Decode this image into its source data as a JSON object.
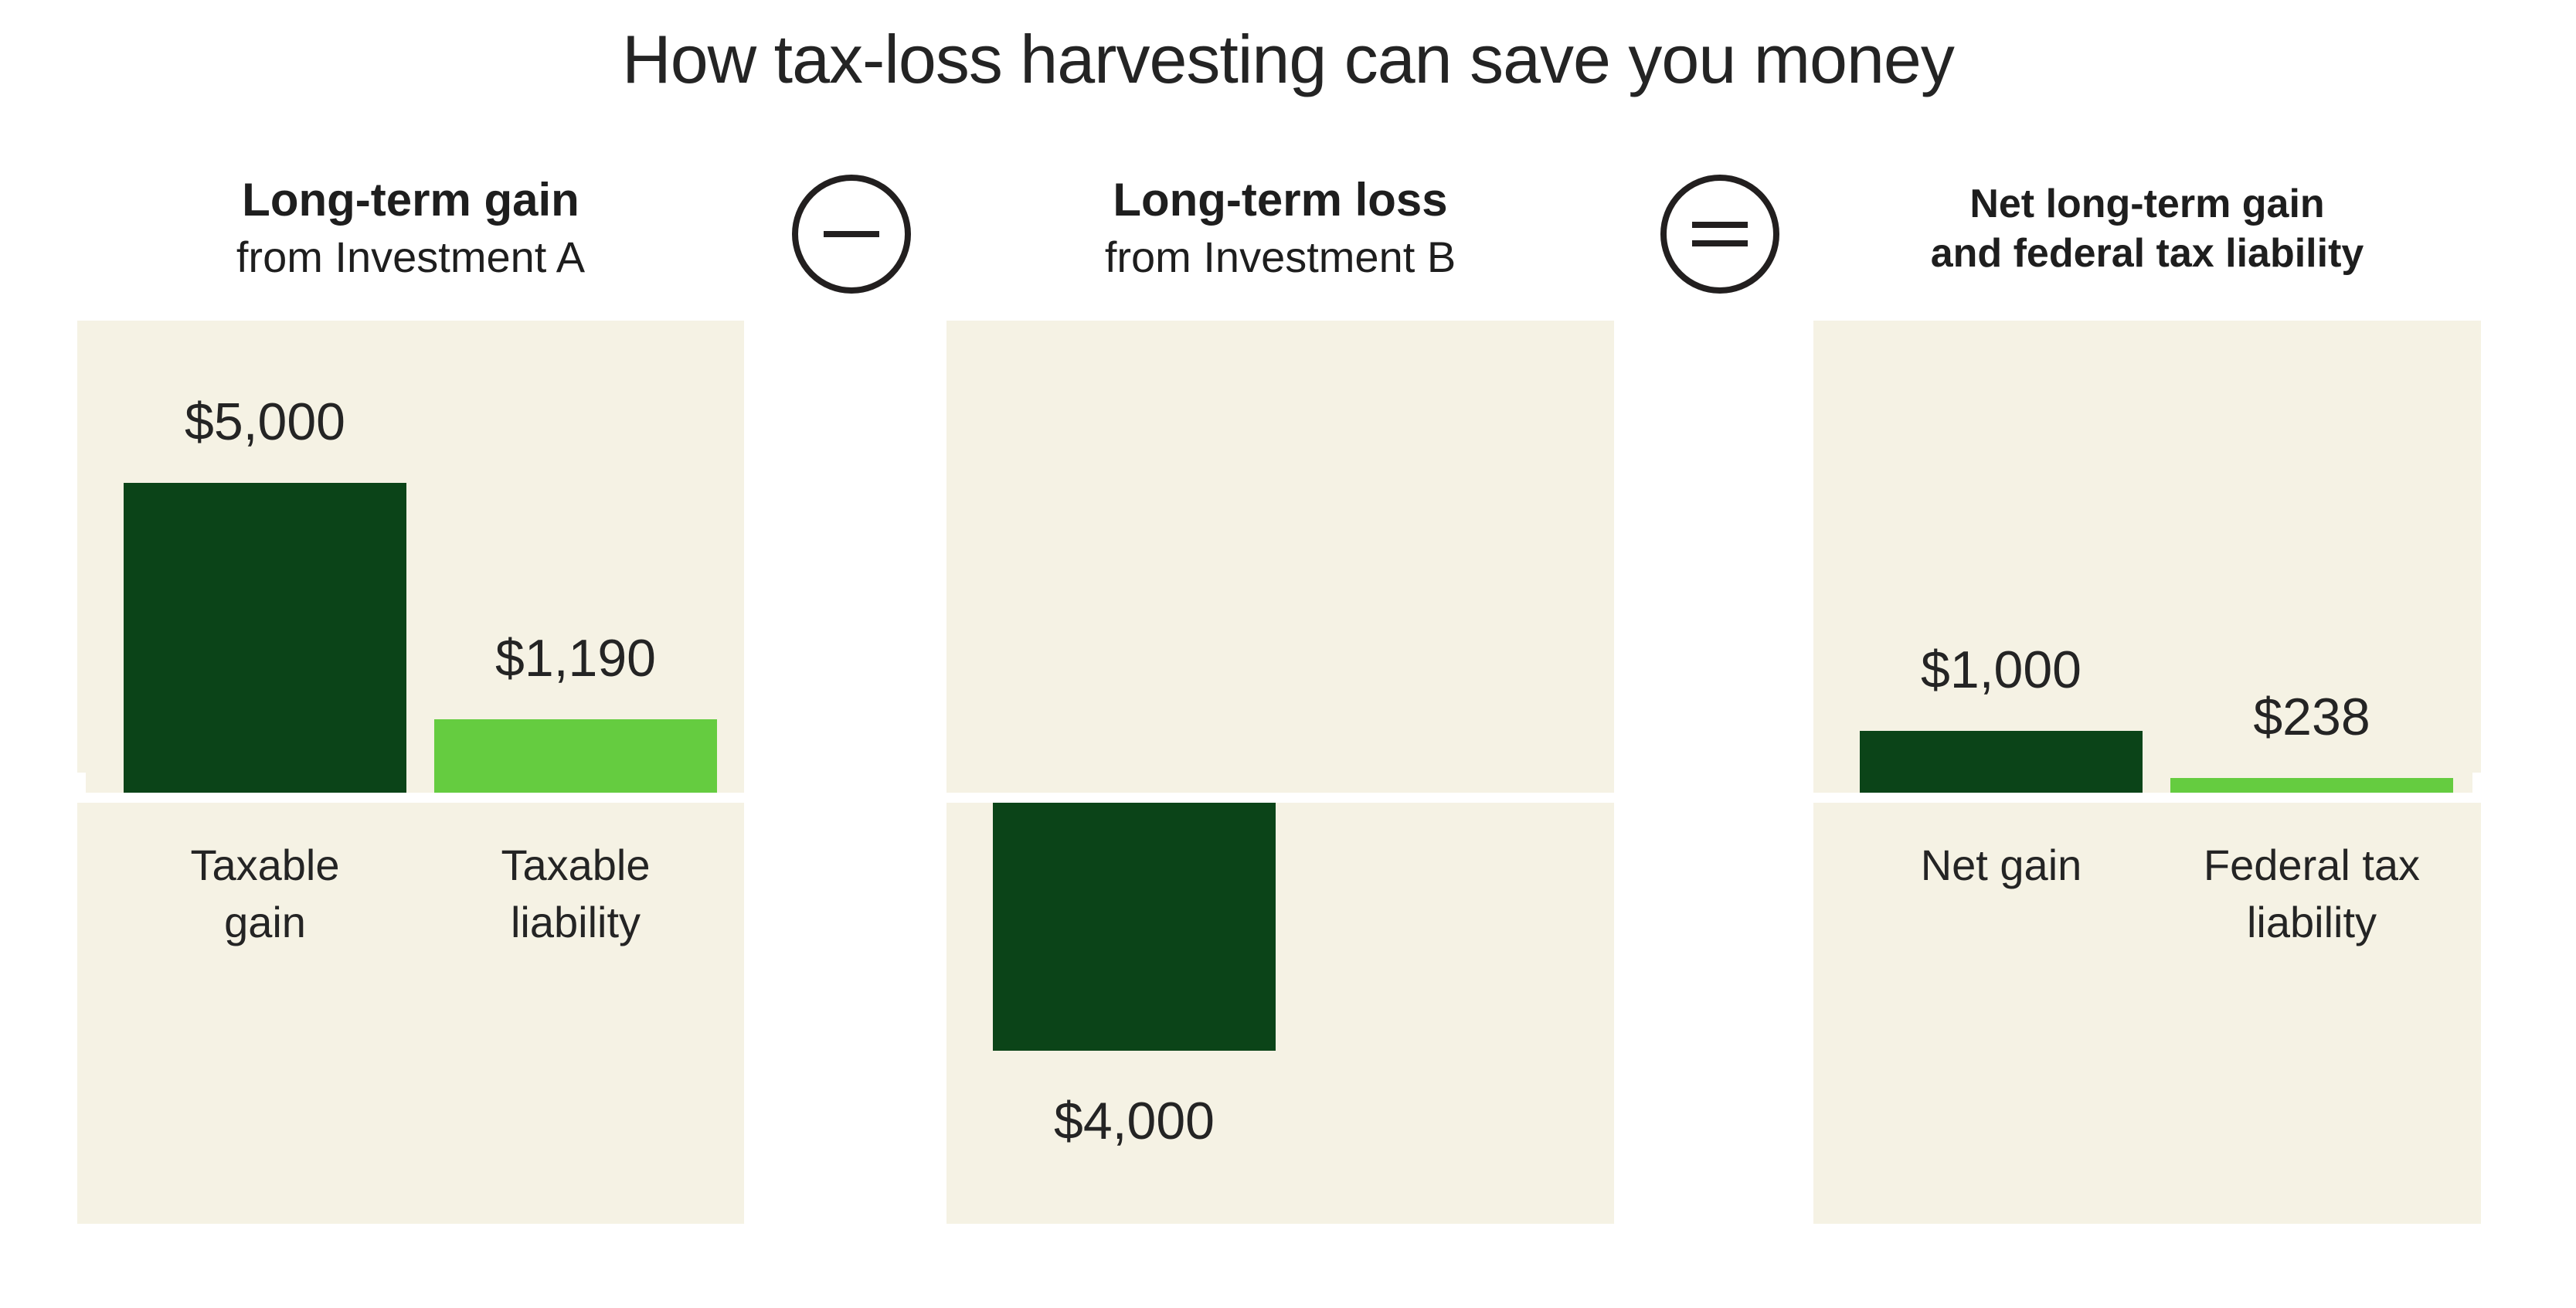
{
  "title": "How tax-loss harvesting can save you money",
  "operators": [
    {
      "name": "minus",
      "symbol": "−"
    },
    {
      "name": "equals",
      "symbol": "="
    }
  ],
  "chart_data": {
    "type": "bar",
    "title": "How tax-loss harvesting can save you money",
    "unit": "USD",
    "axis": {
      "baseline": 0,
      "max_value": 5000,
      "gridlines": false,
      "value_labels_shown": true
    },
    "colors": {
      "dark_green": "#0b4418",
      "light_green": "#65cc40",
      "panel_bg": "#f5f2e4",
      "text": "#242424",
      "outline": "#221f1f"
    },
    "panels": [
      {
        "header": {
          "bold": "Long-term gain",
          "sub": "from Investment A"
        },
        "bars": [
          {
            "name": "taxable-gain",
            "label": "Taxable\ngain",
            "value": 5000,
            "display": "$5,000",
            "color": "dark_green",
            "direction": "up"
          },
          {
            "name": "taxable-liability",
            "label": "Taxable\nliability",
            "value": 1190,
            "display": "$1,190",
            "color": "light_green",
            "direction": "up"
          }
        ]
      },
      {
        "header": {
          "bold": "Long-term loss",
          "sub": "from Investment B"
        },
        "bars": [
          {
            "name": "long-term-loss",
            "label": "",
            "value": 4000,
            "display": "$4,000",
            "color": "dark_green",
            "direction": "down"
          }
        ]
      },
      {
        "header": {
          "bold": "Net long-term gain\nand federal tax liability",
          "sub": ""
        },
        "bars": [
          {
            "name": "net-gain",
            "label": "Net gain",
            "value": 1000,
            "display": "$1,000",
            "color": "dark_green",
            "direction": "up"
          },
          {
            "name": "federal-tax-liability",
            "label": "Federal tax\nliability",
            "value": 238,
            "display": "$238",
            "color": "light_green",
            "direction": "up"
          }
        ]
      }
    ]
  }
}
